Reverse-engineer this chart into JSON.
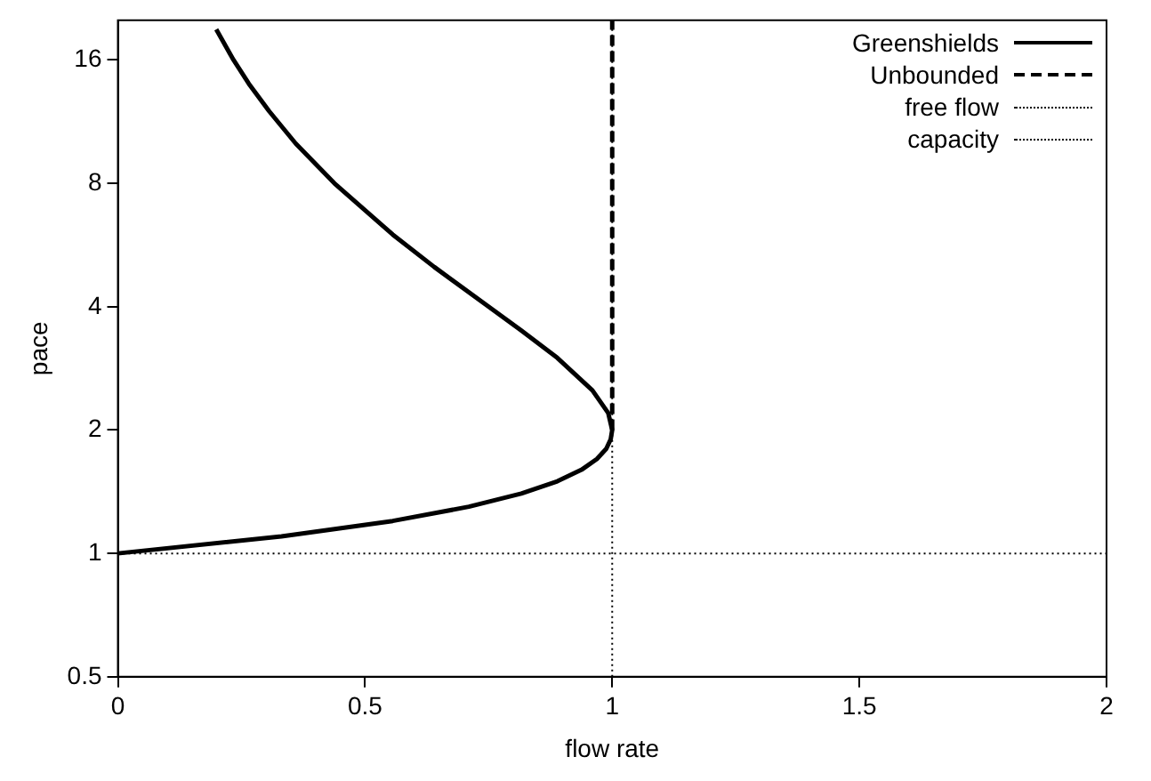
{
  "chart_data": {
    "type": "line",
    "xlabel": "flow rate",
    "ylabel": "pace",
    "log": "y",
    "xlim": [
      0,
      2
    ],
    "xticks": [
      0,
      0.5,
      1,
      1.5,
      2
    ],
    "ylim": [
      0.5,
      20
    ],
    "yticks": [
      0.5,
      1,
      2,
      4,
      8,
      16
    ],
    "grid": false,
    "legend": "top right",
    "marker": "none",
    "series": [
      {
        "name": "Greenshields",
        "color": "#000000",
        "line_style": "solid",
        "x": [
          0,
          0.331,
          0.556,
          0.71,
          0.816,
          0.889,
          0.938,
          0.969,
          0.988,
          0.997,
          1,
          0.992,
          0.96,
          0.889,
          0.816,
          0.75,
          0.64,
          0.556,
          0.438,
          0.36,
          0.306,
          0.265,
          0.234,
          0.199
        ],
        "values": [
          1,
          1.1,
          1.2,
          1.3,
          1.4,
          1.5,
          1.6,
          1.7,
          1.8,
          1.9,
          2,
          2.2,
          2.5,
          3,
          3.5,
          4,
          5,
          6,
          8,
          10,
          12,
          14,
          16,
          19
        ]
      },
      {
        "name": "Unbounded",
        "color": "#000000",
        "line_style": "dashed",
        "x": [
          1,
          1
        ],
        "values": [
          2,
          20
        ]
      },
      {
        "name": "free flow",
        "color": "#000000",
        "line_style": "dotted",
        "x": [
          0,
          2
        ],
        "values": [
          1,
          1
        ]
      },
      {
        "name": "capacity",
        "color": "#000000",
        "line_style": "dotted",
        "x": [
          1,
          1
        ],
        "values": [
          0.5,
          20
        ]
      }
    ]
  }
}
